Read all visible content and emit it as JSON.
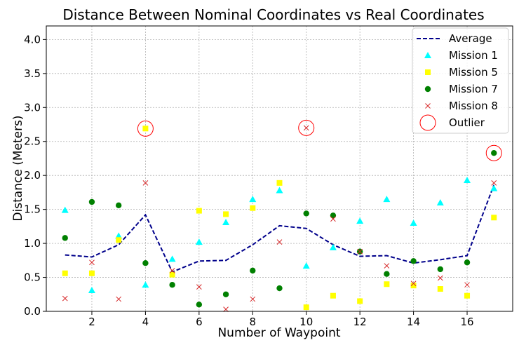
{
  "chart_data": {
    "type": "scatter",
    "title": "Distance Between Nominal Coordinates vs Real Coordinates",
    "xlabel": "Number of Waypoint",
    "ylabel": "Distance (Meters)",
    "xlim": [
      0.3,
      17.7
    ],
    "ylim": [
      0,
      4.2
    ],
    "xticks": [
      2,
      4,
      6,
      8,
      10,
      12,
      14,
      16
    ],
    "yticks": [
      0.0,
      0.5,
      1.0,
      1.5,
      2.0,
      2.5,
      3.0,
      3.5,
      4.0
    ],
    "grid": true,
    "legend_position": "top-right",
    "x": [
      1,
      2,
      3,
      4,
      5,
      6,
      7,
      8,
      9,
      10,
      11,
      12,
      13,
      14,
      15,
      16,
      17
    ],
    "series": [
      {
        "name": "Average",
        "kind": "line",
        "color": "#00008b",
        "values": [
          0.83,
          0.8,
          0.98,
          1.42,
          0.58,
          0.74,
          0.75,
          0.98,
          1.26,
          1.22,
          0.98,
          0.81,
          0.82,
          0.71,
          0.76,
          0.82,
          1.86
        ]
      },
      {
        "name": "Mission 1",
        "kind": "triangle",
        "color": "#00ffff",
        "values": [
          1.49,
          0.31,
          1.11,
          0.39,
          0.77,
          1.02,
          1.31,
          1.65,
          1.78,
          0.67,
          0.94,
          1.33,
          1.65,
          1.3,
          1.6,
          1.93,
          1.81
        ]
      },
      {
        "name": "Mission 5",
        "kind": "square",
        "color": "#ffff00",
        "values": [
          0.56,
          0.56,
          1.05,
          2.69,
          0.54,
          1.48,
          1.43,
          1.52,
          1.89,
          0.06,
          0.23,
          0.15,
          0.4,
          0.38,
          0.33,
          0.23,
          1.38
        ]
      },
      {
        "name": "Mission 7",
        "kind": "circle",
        "color": "#008000",
        "values": [
          1.08,
          1.61,
          1.56,
          0.71,
          0.39,
          0.1,
          0.25,
          0.6,
          0.34,
          1.44,
          1.41,
          0.88,
          0.55,
          0.74,
          0.62,
          0.72,
          2.33
        ]
      },
      {
        "name": "Mission 8",
        "kind": "x",
        "color": "#d62728",
        "values": [
          0.19,
          0.72,
          0.18,
          1.89,
          0.6,
          0.36,
          0.03,
          0.18,
          1.02,
          2.7,
          1.36,
          0.88,
          0.67,
          0.41,
          0.49,
          0.39,
          1.89
        ]
      }
    ],
    "outliers": {
      "name": "Outlier",
      "color": "#ff0000",
      "points": [
        {
          "x": 4,
          "y": 2.69
        },
        {
          "x": 10,
          "y": 2.7
        },
        {
          "x": 17,
          "y": 2.33
        }
      ]
    }
  }
}
